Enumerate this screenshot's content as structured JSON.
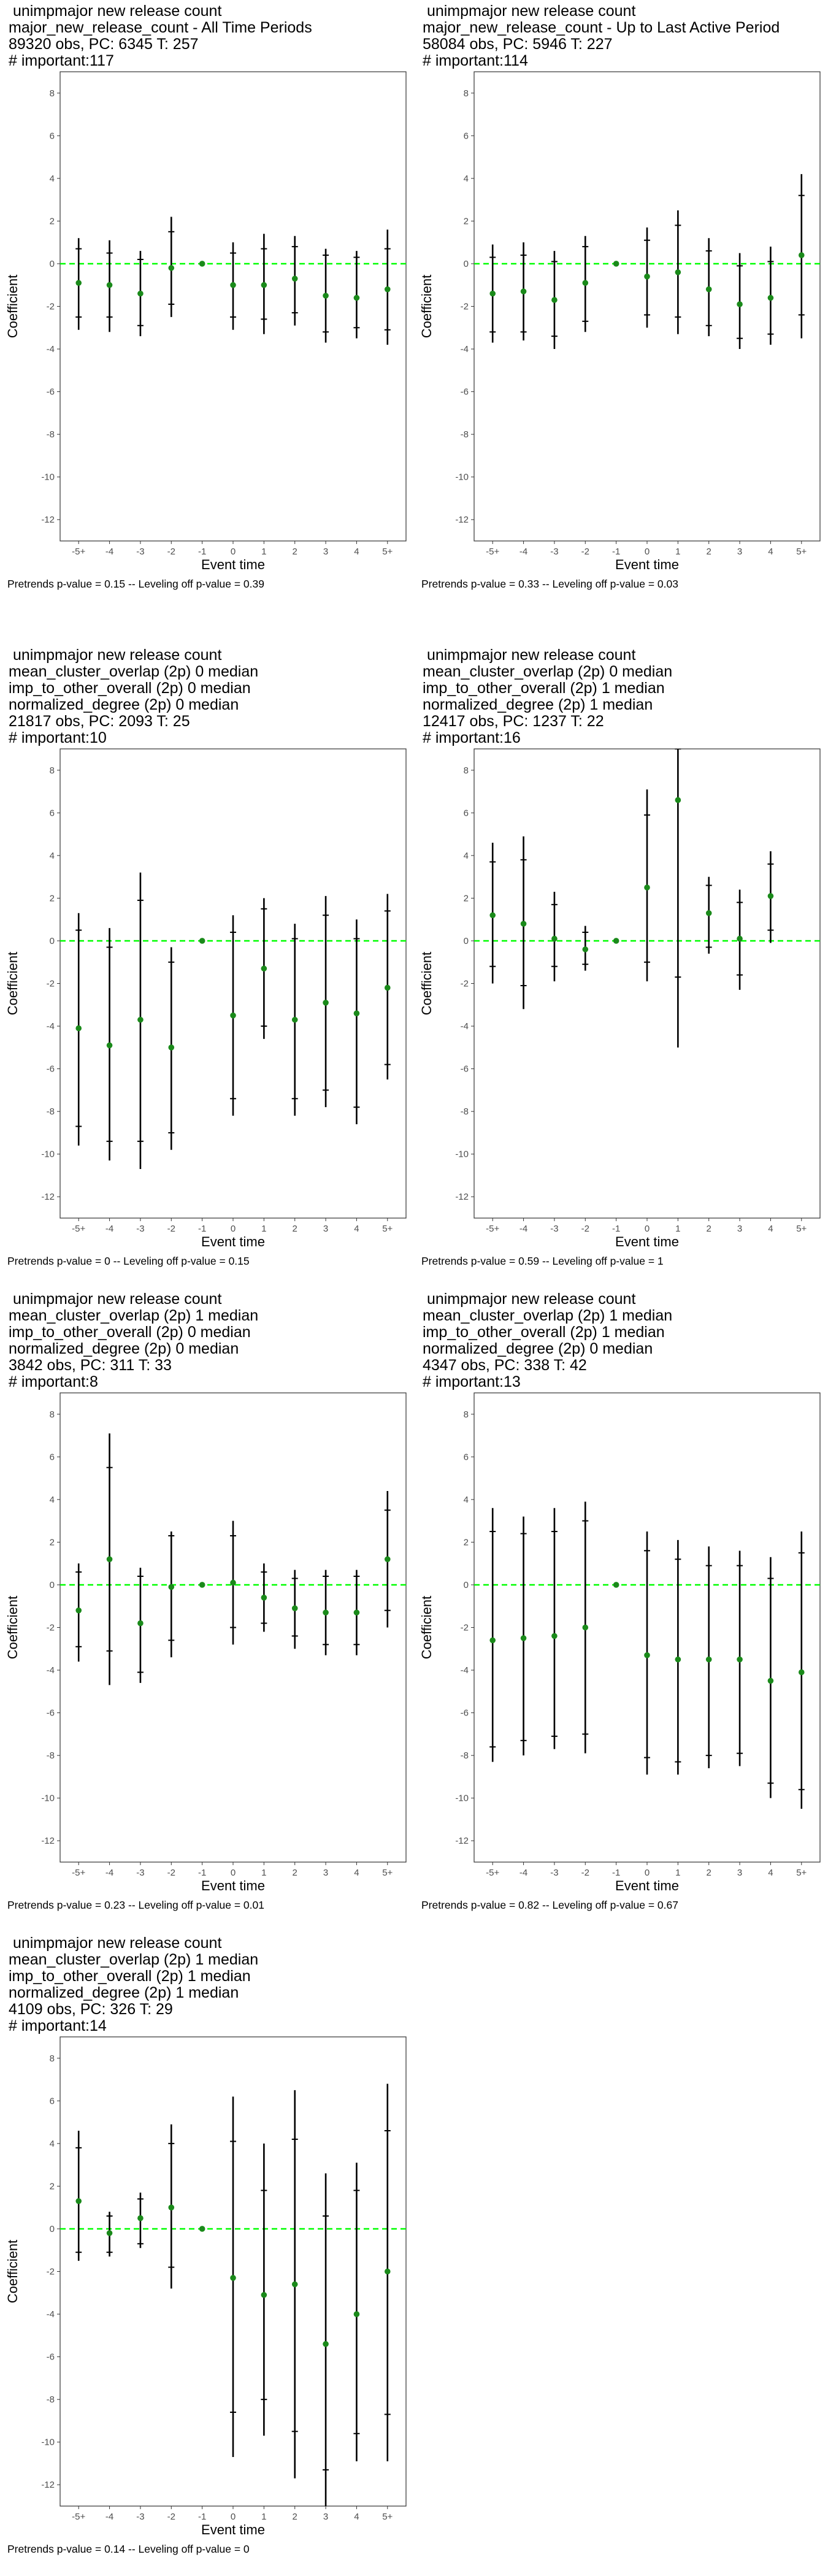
{
  "chart_data": [
    {
      "type": "scatter",
      "title_lines": [
        " unimpmajor new release count",
        "major_new_release_count - All Time Periods",
        "89320 obs, PC: 6345 T: 257",
        "# important:117"
      ],
      "xlabel": "Event time",
      "ylabel": "Coefficient",
      "categories": [
        "-5+",
        "-4",
        "-3",
        "-2",
        "-1",
        "0",
        "1",
        "2",
        "3",
        "4",
        "5+"
      ],
      "y_ticks": [
        8,
        6,
        4,
        2,
        0,
        -2,
        -4,
        -6,
        -8,
        -10,
        -12
      ],
      "ylim": [
        -13,
        9
      ],
      "reference_line": 0,
      "points": [
        -0.9,
        -1.0,
        -1.4,
        -0.2,
        0.0,
        -1.0,
        -1.0,
        -0.7,
        -1.5,
        -1.6,
        -1.2
      ],
      "ci_inner_low": [
        -2.5,
        -2.5,
        -2.9,
        -1.9,
        0.0,
        -2.5,
        -2.6,
        -2.3,
        -3.2,
        -3.0,
        -3.1
      ],
      "ci_inner_high": [
        0.7,
        0.5,
        0.2,
        1.5,
        0.0,
        0.5,
        0.7,
        0.8,
        0.4,
        0.3,
        0.7
      ],
      "ci_outer_low": [
        -3.1,
        -3.2,
        -3.4,
        -2.5,
        0.0,
        -3.1,
        -3.3,
        -2.9,
        -3.7,
        -3.5,
        -3.8
      ],
      "ci_outer_high": [
        1.2,
        1.1,
        0.6,
        2.2,
        0.0,
        1.0,
        1.4,
        1.3,
        0.7,
        0.6,
        1.6
      ],
      "footnote": "Pretrends p-value = 0.15 -- Leveling off p-value = 0.39"
    },
    {
      "type": "scatter",
      "title_lines": [
        " unimpmajor new release count",
        "major_new_release_count - Up to Last Active Period",
        "58084 obs, PC: 5946 T: 227",
        "# important:114"
      ],
      "xlabel": "Event time",
      "ylabel": "Coefficient",
      "categories": [
        "-5+",
        "-4",
        "-3",
        "-2",
        "-1",
        "0",
        "1",
        "2",
        "3",
        "4",
        "5+"
      ],
      "y_ticks": [
        8,
        6,
        4,
        2,
        0,
        -2,
        -4,
        -6,
        -8,
        -10,
        -12
      ],
      "ylim": [
        -13,
        9
      ],
      "reference_line": 0,
      "points": [
        -1.4,
        -1.3,
        -1.7,
        -0.9,
        0.0,
        -0.6,
        -0.4,
        -1.2,
        -1.9,
        -1.6,
        0.4
      ],
      "ci_inner_low": [
        -3.2,
        -3.2,
        -3.4,
        -2.7,
        0.0,
        -2.4,
        -2.5,
        -2.9,
        -3.5,
        -3.3,
        -2.4
      ],
      "ci_inner_high": [
        0.3,
        0.4,
        0.1,
        0.8,
        0.0,
        1.1,
        1.8,
        0.6,
        -0.1,
        0.1,
        3.2
      ],
      "ci_outer_low": [
        -3.7,
        -3.6,
        -4.0,
        -3.2,
        0.0,
        -3.0,
        -3.3,
        -3.4,
        -4.0,
        -3.8,
        -3.5
      ],
      "ci_outer_high": [
        0.9,
        1.0,
        0.6,
        1.3,
        0.0,
        1.7,
        2.5,
        1.2,
        0.5,
        0.8,
        4.2
      ],
      "footnote": "Pretrends p-value = 0.33 -- Leveling off p-value = 0.03"
    },
    {
      "type": "scatter",
      "title_lines": [
        " unimpmajor new release count",
        "mean_cluster_overlap (2p) 0 median",
        "imp_to_other_overall (2p) 0 median",
        "normalized_degree (2p) 0 median",
        "21817 obs, PC: 2093 T: 25",
        "# important:10"
      ],
      "xlabel": "Event time",
      "ylabel": "Coefficient",
      "categories": [
        "-5+",
        "-4",
        "-3",
        "-2",
        "-1",
        "0",
        "1",
        "2",
        "3",
        "4",
        "5+"
      ],
      "y_ticks": [
        8,
        6,
        4,
        2,
        0,
        -2,
        -4,
        -6,
        -8,
        -10,
        -12
      ],
      "ylim": [
        -13,
        9
      ],
      "reference_line": 0,
      "points": [
        -4.1,
        -4.9,
        -3.7,
        -5.0,
        0.0,
        -3.5,
        -1.3,
        -3.7,
        -2.9,
        -3.4,
        -2.2
      ],
      "ci_inner_low": [
        -8.7,
        -9.4,
        -9.4,
        -9.0,
        0.0,
        -7.4,
        -4.0,
        -7.4,
        -7.0,
        -7.8,
        -5.8
      ],
      "ci_inner_high": [
        0.5,
        -0.3,
        1.9,
        -1.0,
        0.0,
        0.4,
        1.5,
        0.1,
        1.2,
        0.1,
        1.4
      ],
      "ci_outer_low": [
        -9.6,
        -10.3,
        -10.7,
        -9.8,
        0.0,
        -8.2,
        -4.6,
        -8.2,
        -7.8,
        -8.6,
        -6.5
      ],
      "ci_outer_high": [
        1.3,
        0.6,
        3.2,
        -0.3,
        0.0,
        1.2,
        2.0,
        0.8,
        2.1,
        1.0,
        2.2
      ],
      "footnote": "Pretrends p-value = 0 -- Leveling off p-value = 0.15"
    },
    {
      "type": "scatter",
      "title_lines": [
        " unimpmajor new release count",
        "mean_cluster_overlap (2p) 0 median",
        "imp_to_other_overall (2p) 1 median",
        "normalized_degree (2p) 1 median",
        "12417 obs, PC: 1237 T: 22",
        "# important:16"
      ],
      "xlabel": "Event time",
      "ylabel": "Coefficient",
      "categories": [
        "-5+",
        "-4",
        "-3",
        "-2",
        "-1",
        "0",
        "1",
        "2",
        "3",
        "4",
        "5+"
      ],
      "y_ticks": [
        8,
        6,
        4,
        2,
        0,
        -2,
        -4,
        -6,
        -8,
        -10,
        -12
      ],
      "ylim": [
        -13,
        9
      ],
      "reference_line": 0,
      "points": [
        1.2,
        0.8,
        0.1,
        -0.4,
        0.0,
        2.5,
        6.6,
        1.3,
        0.1,
        2.1,
        null
      ],
      "ci_inner_low": [
        -1.2,
        -2.1,
        -1.2,
        -1.1,
        0.0,
        -1.0,
        -1.7,
        -0.3,
        -1.6,
        0.5,
        null
      ],
      "ci_inner_high": [
        3.7,
        3.8,
        1.7,
        0.4,
        0.0,
        5.9,
        9.0,
        2.6,
        1.8,
        3.6,
        null
      ],
      "ci_outer_low": [
        -2.0,
        -3.2,
        -1.9,
        -1.4,
        0.0,
        -1.9,
        -5.0,
        -0.6,
        -2.3,
        -0.1,
        null
      ],
      "ci_outer_high": [
        4.6,
        4.9,
        2.3,
        0.7,
        0.0,
        7.1,
        9.5,
        3.0,
        2.4,
        4.2,
        null
      ],
      "footnote": "Pretrends p-value = 0.59 -- Leveling off p-value = 1"
    },
    {
      "type": "scatter",
      "title_lines": [
        " unimpmajor new release count",
        "mean_cluster_overlap (2p) 1 median",
        "imp_to_other_overall (2p) 0 median",
        "normalized_degree (2p) 0 median",
        "3842 obs, PC: 311 T: 33",
        "# important:8"
      ],
      "xlabel": "Event time",
      "ylabel": "Coefficient",
      "categories": [
        "-5+",
        "-4",
        "-3",
        "-2",
        "-1",
        "0",
        "1",
        "2",
        "3",
        "4",
        "5+"
      ],
      "y_ticks": [
        8,
        6,
        4,
        2,
        0,
        -2,
        -4,
        -6,
        -8,
        -10,
        -12
      ],
      "ylim": [
        -13,
        9
      ],
      "reference_line": 0,
      "points": [
        -1.2,
        1.2,
        -1.8,
        -0.1,
        0.0,
        0.1,
        -0.6,
        -1.1,
        -1.3,
        -1.3,
        1.2
      ],
      "ci_inner_low": [
        -2.9,
        -3.1,
        -4.1,
        -2.6,
        0.0,
        -2.0,
        -1.8,
        -2.4,
        -2.8,
        -2.8,
        -1.2
      ],
      "ci_inner_high": [
        0.6,
        5.5,
        0.4,
        2.3,
        0.0,
        2.3,
        0.6,
        0.3,
        0.4,
        0.4,
        3.5
      ],
      "ci_outer_low": [
        -3.6,
        -4.7,
        -4.6,
        -3.4,
        0.0,
        -2.8,
        -2.2,
        -3.0,
        -3.3,
        -3.3,
        -2.0
      ],
      "ci_outer_high": [
        1.0,
        7.1,
        0.8,
        2.5,
        0.0,
        3.0,
        1.0,
        0.7,
        0.7,
        0.7,
        4.4
      ],
      "footnote": "Pretrends p-value = 0.23 -- Leveling off p-value = 0.01"
    },
    {
      "type": "scatter",
      "title_lines": [
        " unimpmajor new release count",
        "mean_cluster_overlap (2p) 1 median",
        "imp_to_other_overall (2p) 1 median",
        "normalized_degree (2p) 0 median",
        "4347 obs, PC: 338 T: 42",
        "# important:13"
      ],
      "xlabel": "Event time",
      "ylabel": "Coefficient",
      "categories": [
        "-5+",
        "-4",
        "-3",
        "-2",
        "-1",
        "0",
        "1",
        "2",
        "3",
        "4",
        "5+"
      ],
      "y_ticks": [
        8,
        6,
        4,
        2,
        0,
        -2,
        -4,
        -6,
        -8,
        -10,
        -12
      ],
      "ylim": [
        -13,
        9
      ],
      "reference_line": 0,
      "points": [
        -2.6,
        -2.5,
        -2.4,
        -2.0,
        0.0,
        -3.3,
        -3.5,
        -3.5,
        -3.5,
        -4.5,
        -4.1
      ],
      "ci_inner_low": [
        -7.6,
        -7.3,
        -7.1,
        -7.0,
        0.0,
        -8.1,
        -8.3,
        -8.0,
        -7.9,
        -9.3,
        -9.6
      ],
      "ci_inner_high": [
        2.5,
        2.4,
        2.5,
        3.0,
        0.0,
        1.6,
        1.2,
        0.9,
        0.9,
        0.3,
        1.5
      ],
      "ci_outer_low": [
        -8.3,
        -8.0,
        -7.7,
        -7.9,
        0.0,
        -8.9,
        -8.9,
        -8.6,
        -8.5,
        -10.0,
        -10.5
      ],
      "ci_outer_high": [
        3.6,
        3.2,
        3.6,
        3.9,
        0.0,
        2.5,
        2.1,
        1.8,
        1.6,
        1.3,
        2.5
      ],
      "footnote": "Pretrends p-value = 0.82 -- Leveling off p-value = 0.67"
    },
    {
      "type": "scatter",
      "title_lines": [
        " unimpmajor new release count",
        "mean_cluster_overlap (2p) 1 median",
        "imp_to_other_overall (2p) 1 median",
        "normalized_degree (2p) 1 median",
        "4109 obs, PC: 326 T: 29",
        "# important:14"
      ],
      "xlabel": "Event time",
      "ylabel": "Coefficient",
      "categories": [
        "-5+",
        "-4",
        "-3",
        "-2",
        "-1",
        "0",
        "1",
        "2",
        "3",
        "4",
        "5+"
      ],
      "y_ticks": [
        8,
        6,
        4,
        2,
        0,
        -2,
        -4,
        -6,
        -8,
        -10,
        -12
      ],
      "ylim": [
        -13,
        9
      ],
      "reference_line": 0,
      "points": [
        1.3,
        -0.2,
        0.5,
        1.0,
        0.0,
        -2.3,
        -3.1,
        -2.6,
        -5.4,
        -4.0,
        -2.0
      ],
      "ci_inner_low": [
        -1.1,
        -1.1,
        -0.7,
        -1.8,
        0.0,
        -8.6,
        -8.0,
        -9.5,
        -11.3,
        -9.6,
        -8.7
      ],
      "ci_inner_high": [
        3.8,
        0.6,
        1.4,
        4.0,
        0.0,
        4.1,
        1.8,
        4.2,
        0.6,
        1.8,
        4.6
      ],
      "ci_outer_low": [
        -1.5,
        -1.3,
        -0.9,
        -2.8,
        0.0,
        -10.7,
        -9.7,
        -11.7,
        -13.0,
        -10.9,
        -10.9
      ],
      "ci_outer_high": [
        4.6,
        0.8,
        1.7,
        4.9,
        0.0,
        6.2,
        4.0,
        6.5,
        2.6,
        3.1,
        6.8
      ],
      "footnote": "Pretrends p-value = 0.14 -- Leveling off p-value = 0"
    }
  ],
  "colors": {
    "point": "#1a8a1a",
    "reference_line": "#00ff00",
    "errorbar": "#000000",
    "axis_text": "#4d4d4d",
    "panel_border": "#333333"
  }
}
